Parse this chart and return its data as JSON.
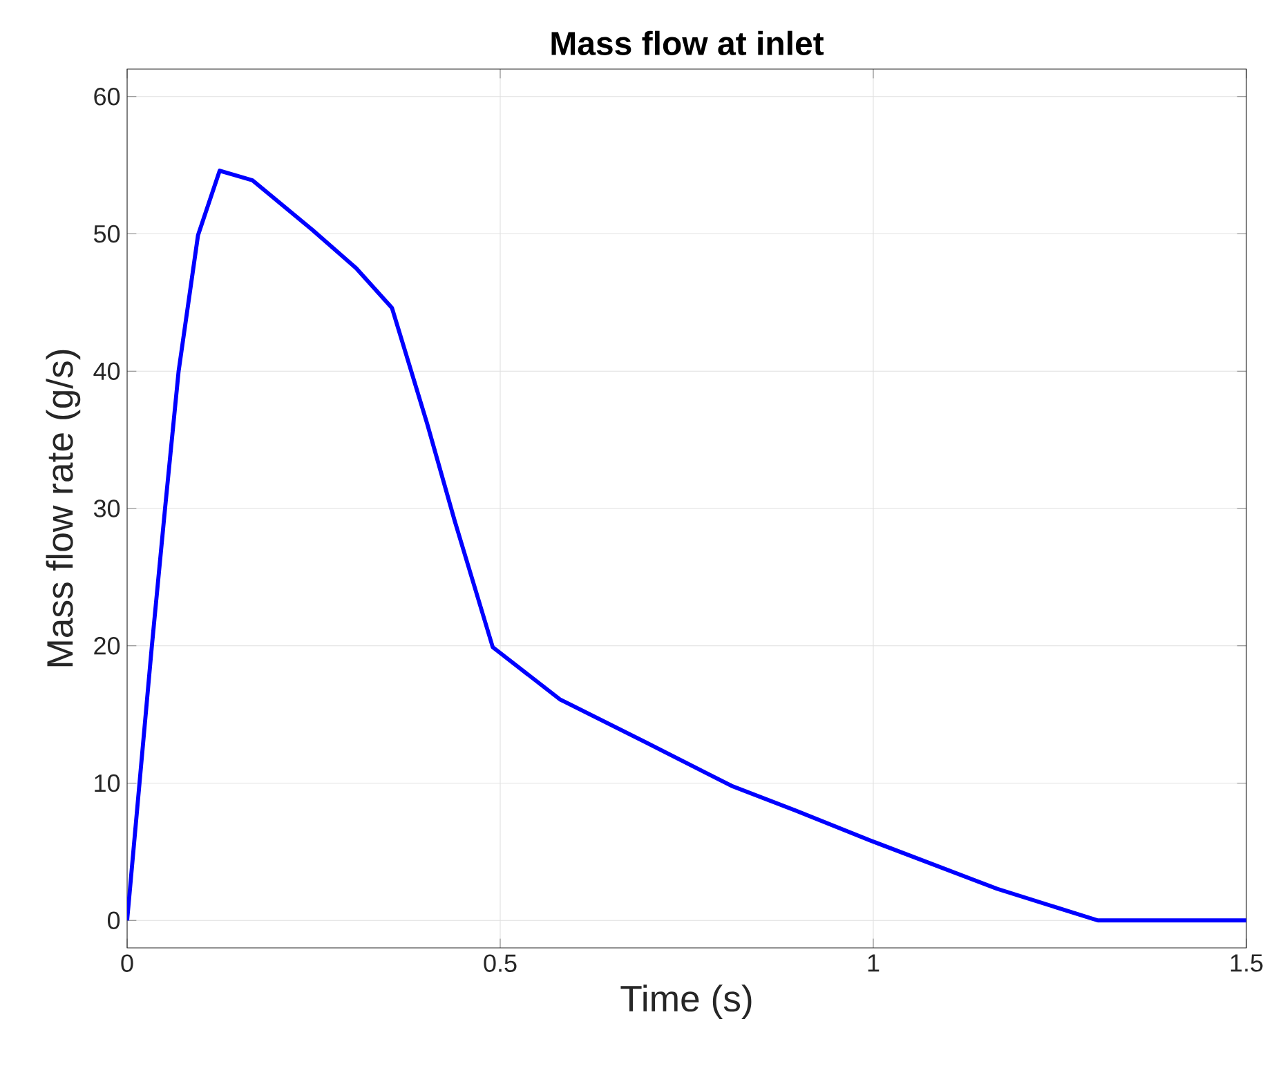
{
  "chart_data": {
    "type": "line",
    "title": "Mass flow at inlet",
    "xlabel": "Time (s)",
    "ylabel": "Mass flow rate (g/s)",
    "x": [
      0,
      0.033,
      0.051,
      0.069,
      0.095,
      0.124,
      0.168,
      0.248,
      0.307,
      0.355,
      0.402,
      0.439,
      0.49,
      0.58,
      0.694,
      0.81,
      0.896,
      0.997,
      1.166,
      1.301,
      1.5
    ],
    "series": [
      {
        "color": "#0000ff",
        "values": [
          0,
          19.9,
          30.1,
          40.0,
          49.9,
          54.6,
          53.9,
          50.3,
          47.5,
          44.6,
          36.2,
          29.1,
          19.9,
          16.1,
          13.0,
          9.8,
          8.0,
          5.8,
          2.3,
          0,
          0
        ]
      }
    ],
    "xlim": [
      0,
      1.5
    ],
    "ylim": [
      -2,
      62
    ],
    "xticks": [
      0,
      0.5,
      1,
      1.5
    ],
    "yticks": [
      0,
      10,
      20,
      30,
      40,
      50,
      60
    ],
    "grid": true
  }
}
